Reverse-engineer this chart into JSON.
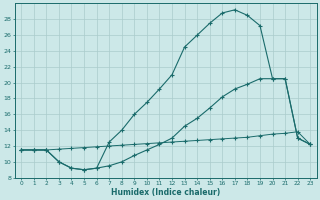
{
  "xlabel": "Humidex (Indice chaleur)",
  "background_color": "#cce8e8",
  "grid_color": "#aacccc",
  "line_color": "#1a6b6b",
  "xlim": [
    -0.5,
    23.5
  ],
  "ylim": [
    8,
    30
  ],
  "xticks": [
    0,
    1,
    2,
    3,
    4,
    5,
    6,
    7,
    8,
    9,
    10,
    11,
    12,
    13,
    14,
    15,
    16,
    17,
    18,
    19,
    20,
    21,
    22,
    23
  ],
  "yticks": [
    8,
    10,
    12,
    14,
    16,
    18,
    20,
    22,
    24,
    26,
    28
  ],
  "series1_x": [
    0,
    1,
    2,
    3,
    4,
    5,
    6,
    7,
    8,
    9,
    10,
    11,
    12,
    13,
    14,
    15,
    16,
    17,
    18,
    19,
    20,
    21,
    22,
    23
  ],
  "series1_y": [
    11.5,
    11.5,
    11.5,
    10.0,
    9.2,
    9.0,
    9.2,
    12.5,
    14.0,
    16.0,
    17.5,
    19.2,
    21.0,
    24.5,
    26.0,
    27.5,
    28.8,
    29.2,
    28.5,
    27.2,
    20.5,
    20.5,
    13.0,
    12.2
  ],
  "series2_x": [
    0,
    1,
    2,
    3,
    4,
    5,
    6,
    7,
    8,
    9,
    10,
    11,
    12,
    13,
    14,
    15,
    16,
    17,
    18,
    19,
    20,
    21,
    22,
    23
  ],
  "series2_y": [
    11.5,
    11.5,
    11.5,
    10.0,
    9.2,
    9.0,
    9.2,
    9.5,
    10.0,
    10.8,
    11.5,
    12.2,
    13.0,
    14.5,
    15.5,
    16.8,
    18.2,
    19.2,
    19.8,
    20.5,
    20.5,
    20.5,
    13.0,
    12.2
  ],
  "series3_x": [
    0,
    1,
    2,
    3,
    4,
    5,
    6,
    7,
    8,
    9,
    10,
    11,
    12,
    13,
    14,
    15,
    16,
    17,
    18,
    19,
    20,
    21,
    22,
    23
  ],
  "series3_y": [
    11.5,
    11.5,
    11.5,
    11.6,
    11.7,
    11.8,
    11.9,
    12.0,
    12.1,
    12.2,
    12.3,
    12.4,
    12.5,
    12.6,
    12.7,
    12.8,
    12.9,
    13.0,
    13.1,
    13.3,
    13.5,
    13.6,
    13.8,
    12.2
  ]
}
